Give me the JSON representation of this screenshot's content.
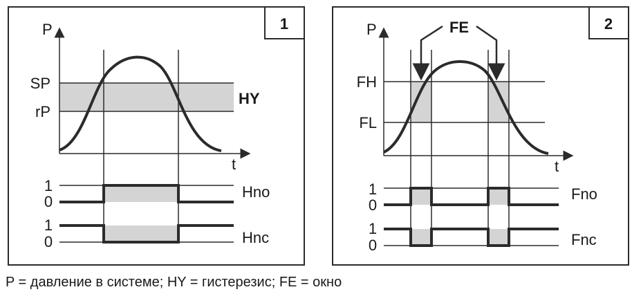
{
  "panel1": {
    "number": "1",
    "y_label": "P",
    "x_label": "t",
    "sp_label": "SP",
    "rp_label": "rP",
    "hy_label": "HY",
    "hno": {
      "label": "Hno",
      "high": "1",
      "low": "0"
    },
    "hnc": {
      "label": "Hnc",
      "high": "1",
      "low": "0"
    }
  },
  "panel2": {
    "number": "2",
    "y_label": "P",
    "x_label": "t",
    "fe_label": "FE",
    "fh_label": "FH",
    "fl_label": "FL",
    "fno": {
      "label": "Fno",
      "high": "1",
      "low": "0"
    },
    "fnc": {
      "label": "Fnc",
      "high": "1",
      "low": "0"
    }
  },
  "caption": "P = давление в системе; HY = гистерезис; FE = окно",
  "colors": {
    "band": "#d4d4d4",
    "line": "#2b2b2b",
    "text": "#1a1a1a"
  }
}
